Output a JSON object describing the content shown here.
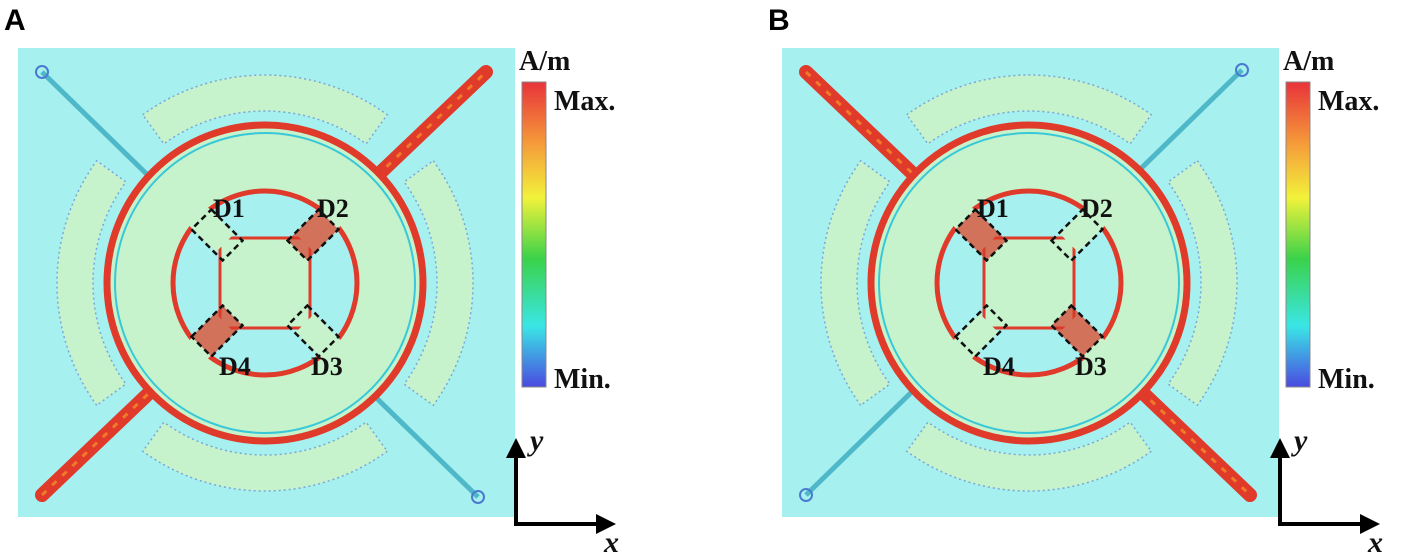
{
  "panels": [
    {
      "label": "A",
      "unit": "A/m",
      "max": "Max.",
      "min": "Min.",
      "devices": [
        "D1",
        "D2",
        "D3",
        "D4"
      ],
      "axes": {
        "x": "x",
        "y": "y"
      }
    },
    {
      "label": "B",
      "unit": "A/m",
      "max": "Max.",
      "min": "Min.",
      "devices": [
        "D1",
        "D2",
        "D3",
        "D4"
      ],
      "axes": {
        "x": "x",
        "y": "y"
      }
    }
  ]
}
